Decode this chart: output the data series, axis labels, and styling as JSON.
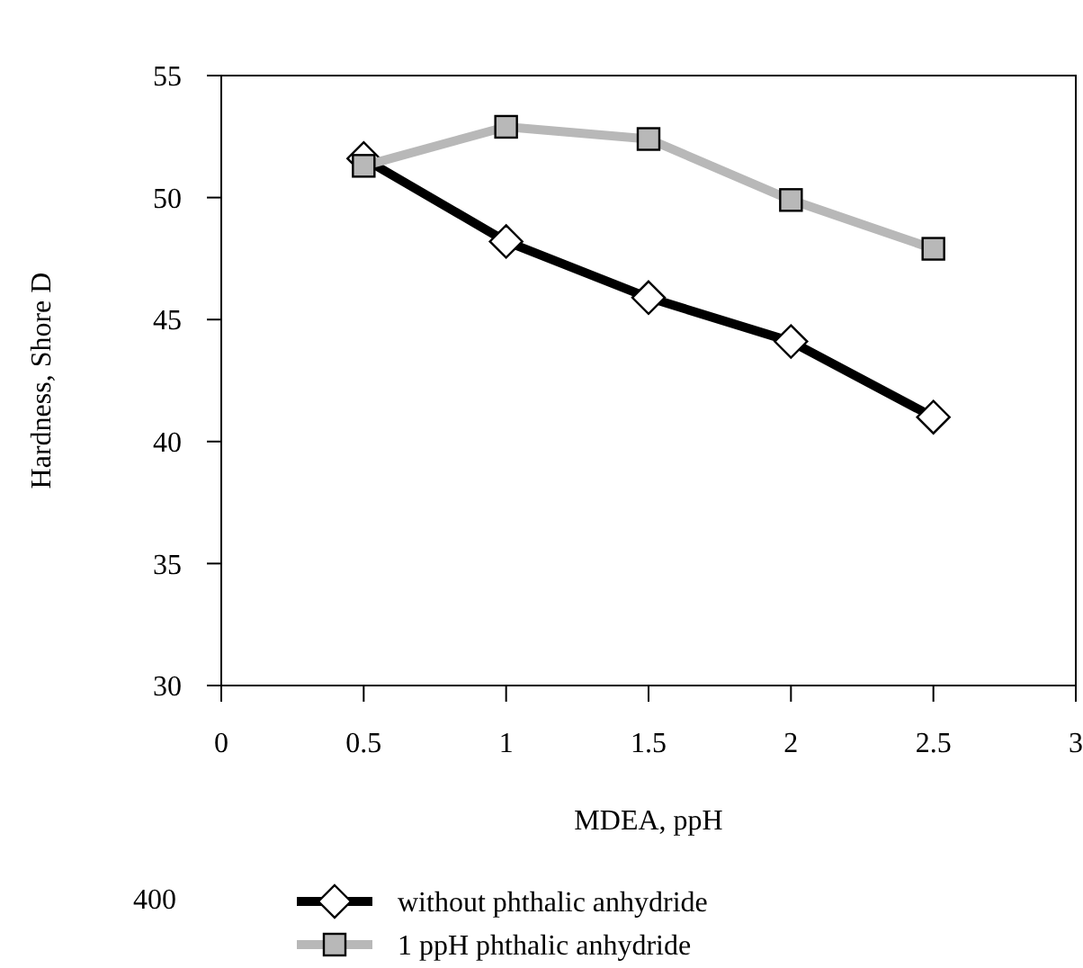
{
  "chart_data": {
    "type": "line",
    "xlabel": "MDEA, ppH",
    "ylabel": "Hardness, Shore D",
    "x": [
      0.5,
      1,
      1.5,
      2,
      2.5
    ],
    "series": [
      {
        "name": "without phthalic anhydride",
        "color": "#000000",
        "marker": "diamond",
        "values": [
          51.6,
          48.2,
          45.9,
          44.1,
          41.0
        ]
      },
      {
        "name": "1 ppH phthalic anhydride",
        "color": "#b8b8b8",
        "marker": "square",
        "values": [
          51.3,
          52.9,
          52.4,
          49.9,
          47.9
        ]
      }
    ],
    "xlim": [
      0,
      3
    ],
    "xticks": [
      0,
      0.5,
      1,
      1.5,
      2,
      2.5,
      3
    ],
    "ylim": [
      30,
      55
    ],
    "yticks": [
      30,
      35,
      40,
      45,
      50,
      55
    ],
    "grid": false,
    "legend": "bottom",
    "line_style": "solid",
    "annotations": [
      "400"
    ]
  }
}
